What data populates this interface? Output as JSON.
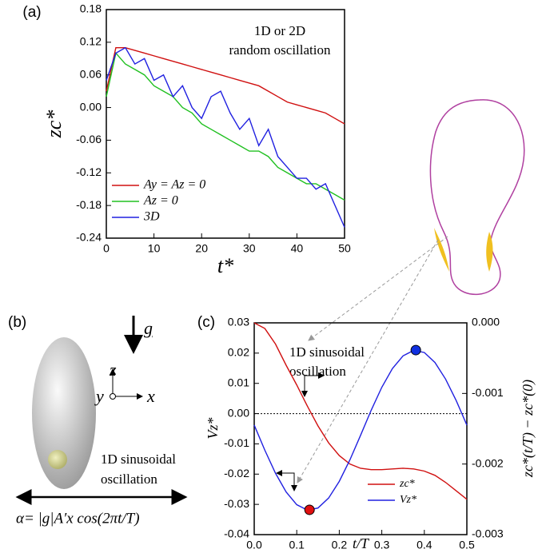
{
  "chart_data": [
    {
      "type": "line",
      "panel": "(a)",
      "xlabel": "t*",
      "ylabel": "zc*",
      "annotation": [
        "1D or 2D",
        "random oscillation"
      ],
      "x": [
        0,
        2,
        4,
        6,
        8,
        10,
        12,
        14,
        16,
        18,
        20,
        22,
        24,
        26,
        28,
        30,
        32,
        34,
        36,
        38,
        40,
        42,
        44,
        46,
        48,
        50
      ],
      "series": [
        {
          "name": "Ay = Az = 0",
          "color": "#d01010",
          "values": [
            0.03,
            0.11,
            0.11,
            0.105,
            0.1,
            0.095,
            0.09,
            0.085,
            0.08,
            0.075,
            0.07,
            0.065,
            0.06,
            0.055,
            0.05,
            0.045,
            0.04,
            0.03,
            0.02,
            0.01,
            0.005,
            0.0,
            -0.005,
            -0.01,
            -0.02,
            -0.03
          ]
        },
        {
          "name": "Az = 0",
          "color": "#20c020",
          "values": [
            0.02,
            0.1,
            0.08,
            0.07,
            0.06,
            0.04,
            0.03,
            0.02,
            0.0,
            -0.01,
            -0.03,
            -0.04,
            -0.05,
            -0.06,
            -0.07,
            -0.08,
            -0.08,
            -0.09,
            -0.11,
            -0.12,
            -0.13,
            -0.14,
            -0.14,
            -0.15,
            -0.16,
            -0.17
          ]
        },
        {
          "name": "3D",
          "color": "#2020e0",
          "values": [
            0.05,
            0.1,
            0.11,
            0.08,
            0.09,
            0.05,
            0.06,
            0.02,
            0.04,
            0.0,
            -0.02,
            0.02,
            0.03,
            -0.01,
            -0.04,
            -0.02,
            -0.07,
            -0.04,
            -0.09,
            -0.11,
            -0.13,
            -0.13,
            -0.15,
            -0.14,
            -0.18,
            -0.22
          ]
        }
      ],
      "xlim": [
        0,
        50
      ],
      "xticks": [
        0,
        10,
        20,
        30,
        40,
        50
      ],
      "ylim": [
        -0.24,
        0.18
      ],
      "yticks": [
        -0.24,
        -0.18,
        -0.12,
        -0.06,
        {
          "value": 0,
          "label": "0.00"
        },
        0.06,
        0.12,
        0.18
      ]
    },
    {
      "type": "line",
      "panel": "(c)",
      "xlabel": "t/T",
      "ylabel": "Vz*",
      "y2label": "zc*(t/T) − zc*(0)",
      "annotation": [
        "1D sinusoidal",
        "oscillation"
      ],
      "zero_line": true,
      "x": [
        0,
        0.025,
        0.05,
        0.075,
        0.1,
        0.125,
        0.15,
        0.175,
        0.2,
        0.225,
        0.25,
        0.275,
        0.3,
        0.325,
        0.35,
        0.375,
        0.4,
        0.425,
        0.45,
        0.475,
        0.5
      ],
      "series": [
        {
          "name": "zc*",
          "color": "#d01010",
          "axis": "y2",
          "values": [
            0,
            -8e-05,
            -0.0003,
            -0.0006,
            -0.00088,
            -0.00118,
            -0.00146,
            -0.0017,
            -0.00188,
            -0.002,
            -0.00206,
            -0.00208,
            -0.00208,
            -0.00207,
            -0.00206,
            -0.00207,
            -0.0021,
            -0.00216,
            -0.00226,
            -0.00238,
            -0.0025
          ]
        },
        {
          "name": "Vz*",
          "color": "#2020e0",
          "values": [
            -0.0038,
            -0.0121,
            -0.0197,
            -0.0259,
            -0.0301,
            -0.0319,
            -0.0312,
            -0.0279,
            -0.0224,
            -0.0153,
            -0.0072,
            0.0011,
            0.0087,
            0.0149,
            0.0191,
            0.0209,
            0.0202,
            0.0169,
            0.0114,
            0.0043,
            -0.0038
          ]
        }
      ],
      "markers": [
        {
          "x": 0.13,
          "y": -0.0318,
          "color": "#e01010"
        },
        {
          "x": 0.38,
          "y": 0.021,
          "color": "#1030e0"
        }
      ],
      "xlim": [
        0,
        0.5
      ],
      "xticks": [
        {
          "value": 0,
          "label": "0.0"
        },
        0.1,
        0.2,
        0.3,
        0.4,
        0.5
      ],
      "ylim": [
        -0.04,
        0.03
      ],
      "yticks": [
        -0.04,
        -0.03,
        -0.02,
        -0.01,
        {
          "value": 0,
          "label": "0.00"
        },
        0.01,
        0.02,
        0.03
      ],
      "y2lim": [
        -0.003,
        0
      ],
      "y2ticks": [
        -0.003,
        -0.002,
        -0.001,
        {
          "value": 0,
          "label": "0.000"
        }
      ]
    }
  ],
  "diagram": {
    "panel": "(b)",
    "gravity": "g",
    "axis_z": "z",
    "axis_y": "y",
    "axis_x": "x",
    "caption": [
      "1D sinusoidal",
      "oscillation"
    ],
    "formula": "α= |g|A′x cos(2πt/T)"
  }
}
